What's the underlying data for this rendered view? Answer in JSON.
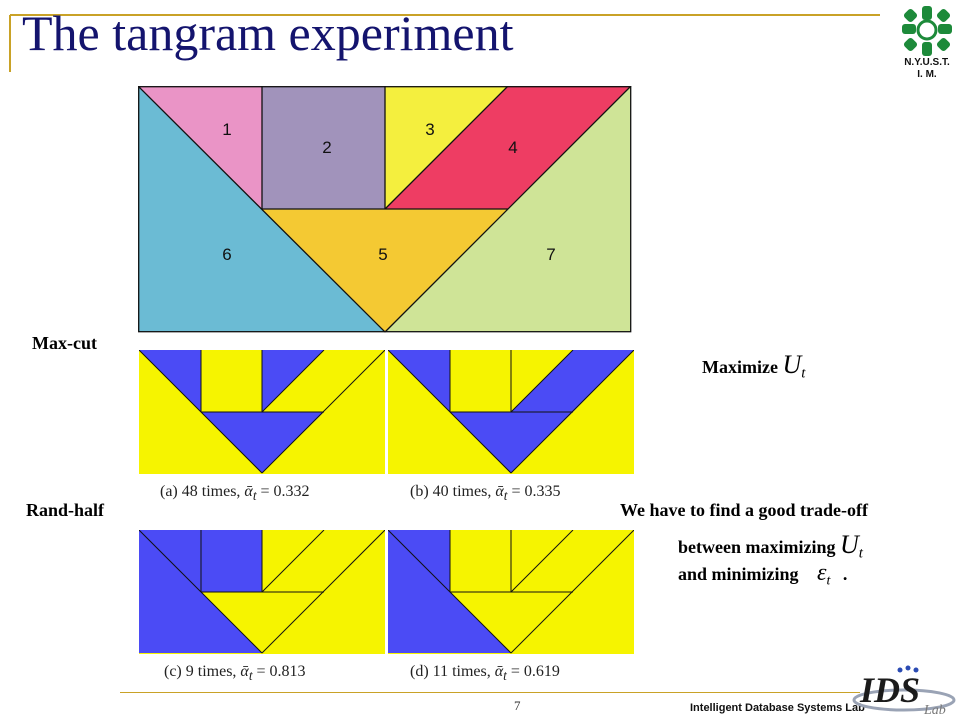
{
  "slide": {
    "title": "The tangram experiment",
    "logo_text": "N.Y.U.S.T.\nI. M.",
    "page_number": "7",
    "footer_lab": "Intelligent Database Systems Lab",
    "brand_logo_text": "IDS Lab"
  },
  "tangram": {
    "piece_labels": [
      "1",
      "2",
      "3",
      "4",
      "5",
      "6",
      "7"
    ],
    "colors": {
      "p1": "#ea94c6",
      "p2": "#a193bb",
      "p3": "#f4ef3e",
      "p4": "#ee3d63",
      "p5": "#f4c933",
      "p6": "#6bbbd4",
      "p7": "#cfe497"
    }
  },
  "results": {
    "max_cut_label": "Max-cut",
    "rand_half_label": "Rand-half",
    "captions": {
      "a": {
        "prefix": "(a) 48 times, ",
        "alpha": "ᾱ",
        "sub": "t",
        "value": " = 0.332"
      },
      "b": {
        "prefix": "(b) 40 times, ",
        "alpha": "ᾱ",
        "sub": "t",
        "value": " = 0.335"
      },
      "c": {
        "prefix": "(c) 9 times, ",
        "alpha": "ᾱ",
        "sub": "t",
        "value": " = 0.813"
      },
      "d": {
        "prefix": "(d) 11 times, ",
        "alpha": "ᾱ",
        "sub": "t",
        "value": " = 0.619"
      }
    },
    "colors": {
      "blue": "#4b4bf5",
      "yellow": "#f6f400"
    }
  },
  "notes": {
    "maximize_label": "Maximize",
    "u_symbol": "U",
    "u_sub": "t",
    "tradeoff_line1": "We have to find a good trade-off",
    "tradeoff_line2": "between maximizing",
    "tradeoff_line3": "and minimizing",
    "eps_symbol": "ε",
    "eps_sub": "t",
    "period": "."
  }
}
